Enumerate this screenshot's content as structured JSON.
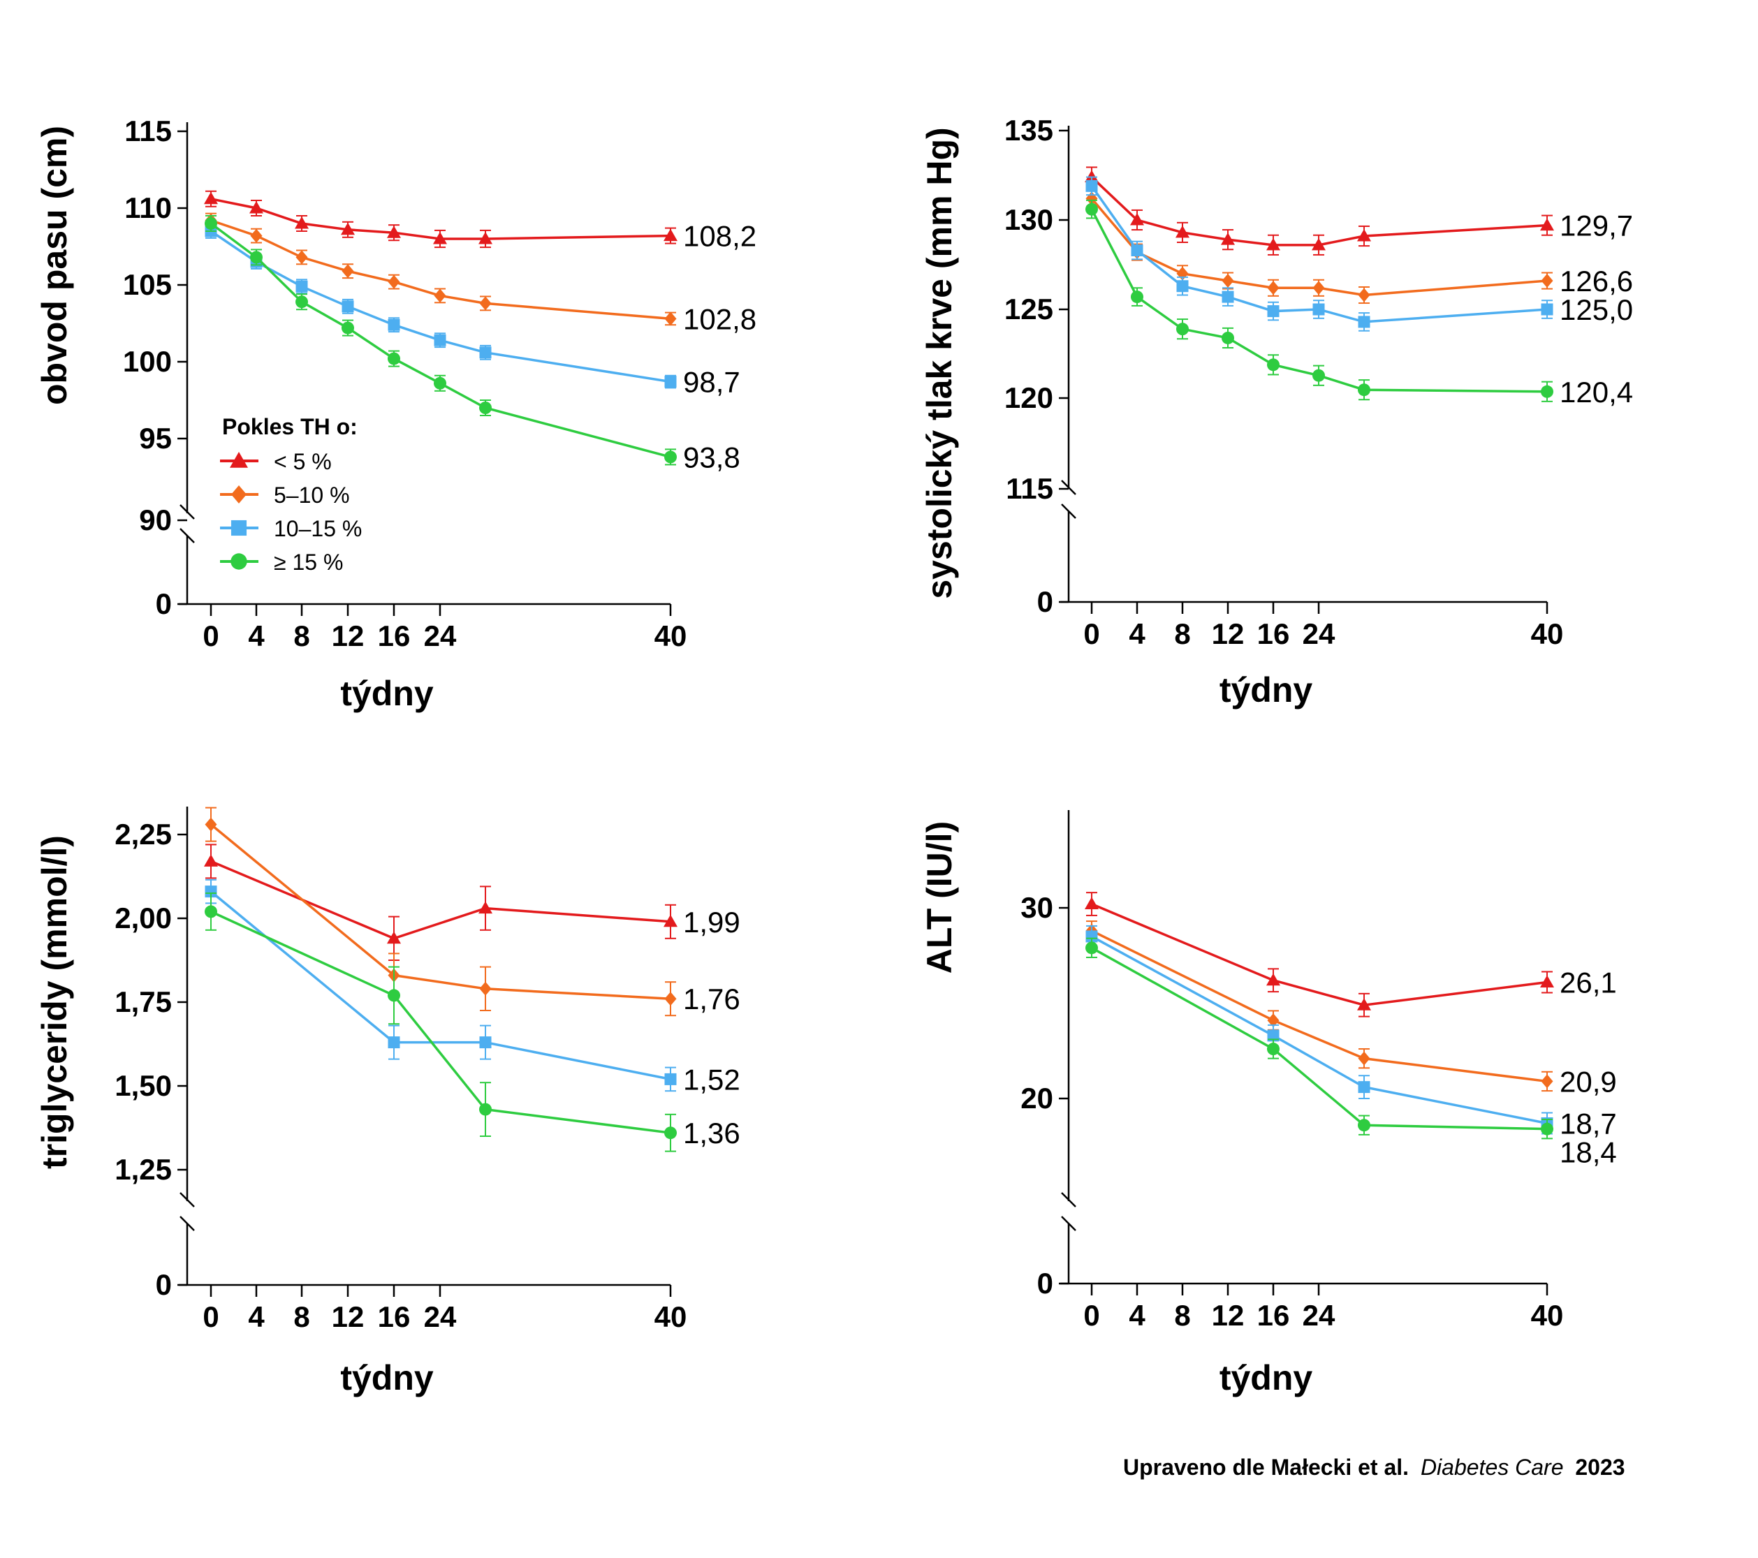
{
  "legend": {
    "title": "Pokles TH o:",
    "items": [
      {
        "label": "< 5 %",
        "color": "#e31a1c",
        "marker": "triangle"
      },
      {
        "label": "5–10 %",
        "color": "#f26b1d",
        "marker": "diamond"
      },
      {
        "label": "10–15 %",
        "color": "#4daef0",
        "marker": "square"
      },
      {
        "label": "≥ 15 %",
        "color": "#2ecc40",
        "marker": "circle"
      }
    ]
  },
  "source": {
    "prefix": "Upraveno dle Małecki et al.",
    "journal": "Diabetes Care",
    "year": "2023"
  },
  "chart_data": [
    {
      "type": "line",
      "id": "waist",
      "ylabel": "obvod pasu (cm)",
      "xlabel": "týdny",
      "x_tick_labels": [
        "0",
        "4",
        "8",
        "12",
        "16",
        "24",
        "40"
      ],
      "y_ticks": [
        "115",
        "110",
        "105",
        "100",
        "95",
        "90",
        "0"
      ],
      "axis_break": "between 90 and 0",
      "ylim": [
        90,
        115
      ],
      "x": [
        "0",
        "4",
        "8",
        "12",
        "16",
        "24",
        "32",
        "40"
      ],
      "series": [
        {
          "name": "< 5 %",
          "values": [
            110.6,
            110.0,
            109.0,
            108.6,
            108.4,
            108.0,
            108.0,
            108.2
          ],
          "errors": [
            0.5,
            0.5,
            0.5,
            0.5,
            0.5,
            0.55,
            0.55,
            0.5
          ],
          "end_label": "108,2"
        },
        {
          "name": "5–10 %",
          "values": [
            109.2,
            108.2,
            106.8,
            105.9,
            105.2,
            104.3,
            103.8,
            102.8
          ],
          "errors": [
            0.45,
            0.45,
            0.45,
            0.45,
            0.45,
            0.45,
            0.45,
            0.4
          ],
          "end_label": "102,8"
        },
        {
          "name": "10–15 %",
          "values": [
            108.5,
            106.5,
            104.9,
            103.6,
            102.4,
            101.4,
            100.6,
            98.7
          ],
          "errors": [
            0.45,
            0.45,
            0.45,
            0.45,
            0.45,
            0.45,
            0.45,
            0.4
          ],
          "end_label": "98,7"
        },
        {
          "name": "≥ 15 %",
          "values": [
            109.0,
            106.8,
            103.9,
            102.2,
            100.2,
            98.6,
            97.0,
            93.8
          ],
          "errors": [
            0.5,
            0.5,
            0.5,
            0.5,
            0.5,
            0.5,
            0.5,
            0.5
          ],
          "end_label": "93,8"
        }
      ],
      "legend": "lower-left"
    },
    {
      "type": "line",
      "id": "sbp",
      "ylabel": "systolický tlak krve (mm Hg)",
      "xlabel": "týdny",
      "x_tick_labels": [
        "0",
        "4",
        "8",
        "12",
        "16",
        "24",
        "40"
      ],
      "y_ticks": [
        "135",
        "130",
        "125",
        "120",
        "115",
        "0"
      ],
      "axis_break": "between 115 and 0",
      "ylim": [
        115,
        135
      ],
      "x": [
        "0",
        "4",
        "8",
        "12",
        "16",
        "24",
        "32",
        "40"
      ],
      "series": [
        {
          "name": "< 5 %",
          "values": [
            132.4,
            130.0,
            129.3,
            128.9,
            128.6,
            128.6,
            129.1,
            129.7
          ],
          "errors": [
            0.55,
            0.55,
            0.55,
            0.55,
            0.55,
            0.55,
            0.55,
            0.55
          ],
          "end_label": "129,7"
        },
        {
          "name": "5–10 %",
          "values": [
            131.2,
            128.2,
            127.0,
            126.6,
            126.2,
            126.2,
            125.8,
            126.6
          ],
          "errors": [
            0.45,
            0.45,
            0.45,
            0.45,
            0.45,
            0.45,
            0.45,
            0.45
          ],
          "end_label": "126,6"
        },
        {
          "name": "10–15 %",
          "values": [
            131.9,
            128.3,
            126.3,
            125.7,
            124.9,
            125.0,
            124.3,
            125.0
          ],
          "errors": [
            0.5,
            0.5,
            0.5,
            0.5,
            0.5,
            0.5,
            0.5,
            0.5
          ],
          "end_label": "125,0"
        },
        {
          "name": "≥ 15 %",
          "values": [
            130.6,
            125.7,
            123.9,
            123.4,
            121.9,
            121.3,
            120.5,
            120.4
          ],
          "errors": [
            0.5,
            0.5,
            0.55,
            0.55,
            0.55,
            0.55,
            0.55,
            0.55
          ],
          "end_label": "120,4"
        }
      ]
    },
    {
      "type": "line",
      "id": "tg",
      "ylabel": "triglyceridy (mmol/l)",
      "xlabel": "týdny",
      "x_tick_labels": [
        "0",
        "4",
        "8",
        "12",
        "16",
        "24",
        "40"
      ],
      "y_ticks": [
        "2,25",
        "2,00",
        "1,75",
        "1,50",
        "1,25",
        "0"
      ],
      "axis_break": "below 1,25",
      "ylim": [
        1.25,
        2.3
      ],
      "x": [
        "0",
        "16",
        "32",
        "40"
      ],
      "series": [
        {
          "name": "< 5 %",
          "values": [
            2.17,
            1.94,
            2.03,
            1.99
          ],
          "errors": [
            0.05,
            0.065,
            0.065,
            0.05
          ],
          "end_label": "1,99"
        },
        {
          "name": "5–10 %",
          "values": [
            2.28,
            1.83,
            1.79,
            1.76
          ],
          "errors": [
            0.05,
            0.065,
            0.065,
            0.05
          ],
          "end_label": "1,76"
        },
        {
          "name": "10–15 %",
          "values": [
            2.08,
            1.63,
            1.63,
            1.52
          ],
          "errors": [
            0.035,
            0.05,
            0.05,
            0.035
          ],
          "end_label": "1,52"
        },
        {
          "name": "≥ 15 %",
          "values": [
            2.02,
            1.77,
            1.43,
            1.36
          ],
          "errors": [
            0.055,
            0.085,
            0.08,
            0.055
          ],
          "end_label": "1,36"
        }
      ]
    },
    {
      "type": "line",
      "id": "alt",
      "ylabel": "ALT (IU/l)",
      "xlabel": "týdny",
      "x_tick_labels": [
        "0",
        "4",
        "8",
        "12",
        "16",
        "24",
        "40"
      ],
      "y_ticks": [
        "30",
        "20",
        "0"
      ],
      "axis_break": "below 20",
      "ylim": [
        15,
        35
      ],
      "x": [
        "0",
        "16",
        "32",
        "40"
      ],
      "series": [
        {
          "name": "< 5 %",
          "values": [
            30.2,
            26.2,
            24.9,
            26.1
          ],
          "errors": [
            0.6,
            0.6,
            0.6,
            0.55
          ],
          "end_label": "26,1"
        },
        {
          "name": "5–10 %",
          "values": [
            28.8,
            24.1,
            22.1,
            20.9
          ],
          "errors": [
            0.5,
            0.5,
            0.5,
            0.5
          ],
          "end_label": "20,9"
        },
        {
          "name": "10–15 %",
          "values": [
            28.5,
            23.3,
            20.6,
            18.7
          ],
          "errors": [
            0.55,
            0.55,
            0.6,
            0.55
          ],
          "end_label": "18,7"
        },
        {
          "name": "≥ 15 %",
          "values": [
            27.9,
            22.6,
            18.6,
            18.4
          ],
          "errors": [
            0.5,
            0.5,
            0.5,
            0.5
          ],
          "end_label": "18,4"
        }
      ]
    }
  ]
}
